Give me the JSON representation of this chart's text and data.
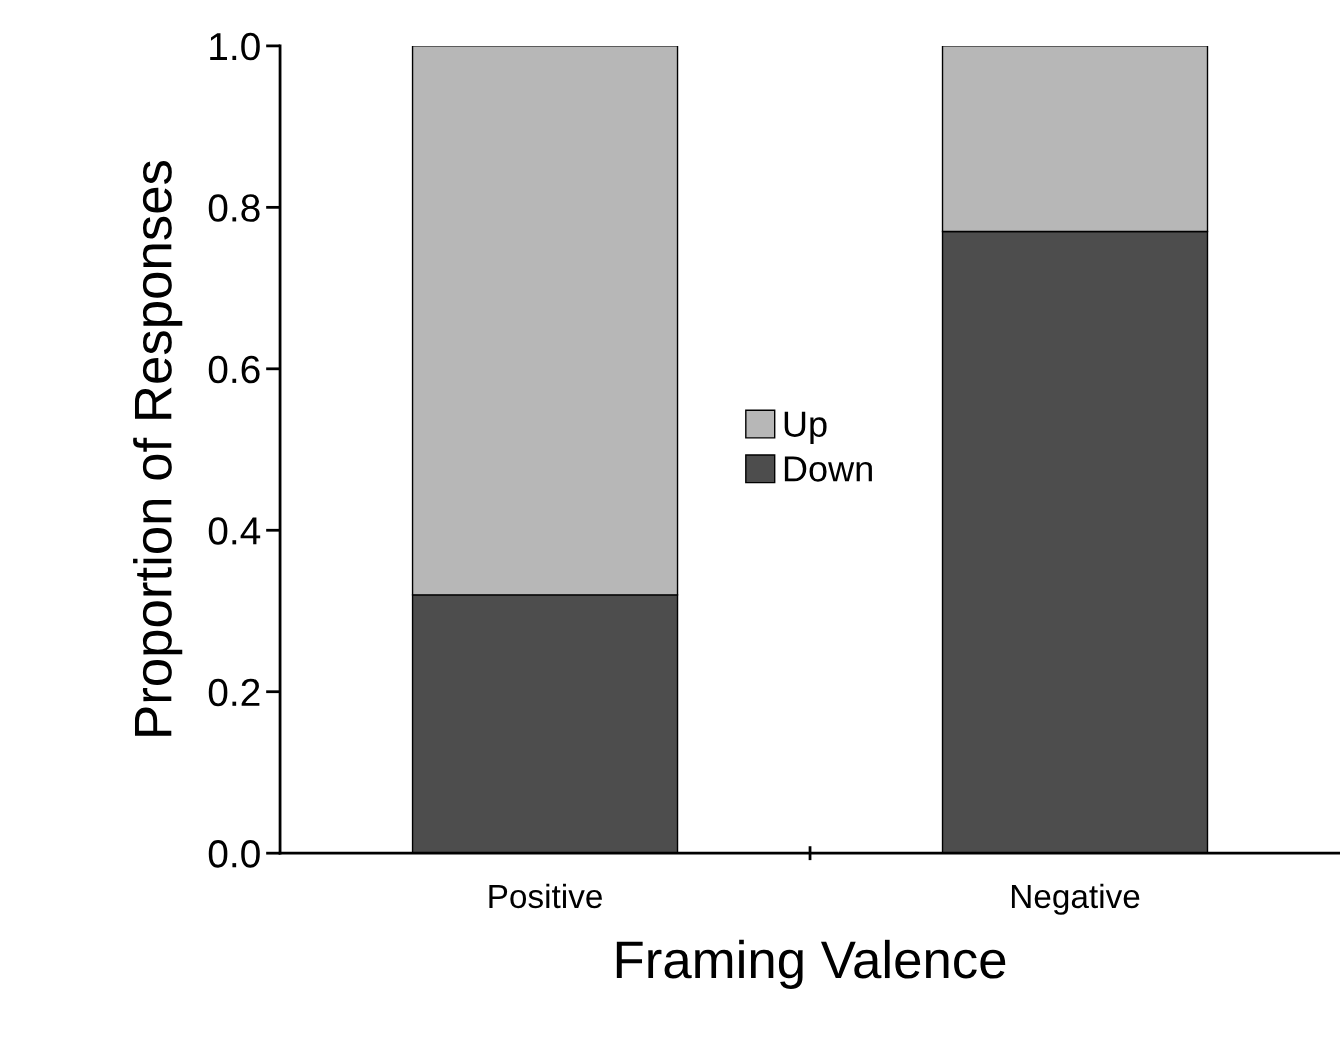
{
  "chart_data": {
    "type": "bar",
    "stacked": true,
    "xlabel": "Framing Valence",
    "ylabel": "Proportion of Responses",
    "categories": [
      "Positive",
      "Negative"
    ],
    "series": [
      {
        "name": "Down",
        "color": "#4d4d4d",
        "values": [
          0.32,
          0.77
        ]
      },
      {
        "name": "Up",
        "color": "#b7b7b7",
        "values": [
          0.68,
          0.23
        ]
      }
    ],
    "ylim": [
      0,
      1
    ],
    "yticks": [
      {
        "value": 0,
        "label": "0.0"
      },
      {
        "value": 0.2,
        "label": "0.2"
      },
      {
        "value": 0.4,
        "label": "0.4"
      },
      {
        "value": 0.6,
        "label": "0.6"
      },
      {
        "value": 0.8,
        "label": "0.8"
      },
      {
        "value": 1,
        "label": "1.0"
      }
    ],
    "grid": false,
    "legend": "center"
  }
}
